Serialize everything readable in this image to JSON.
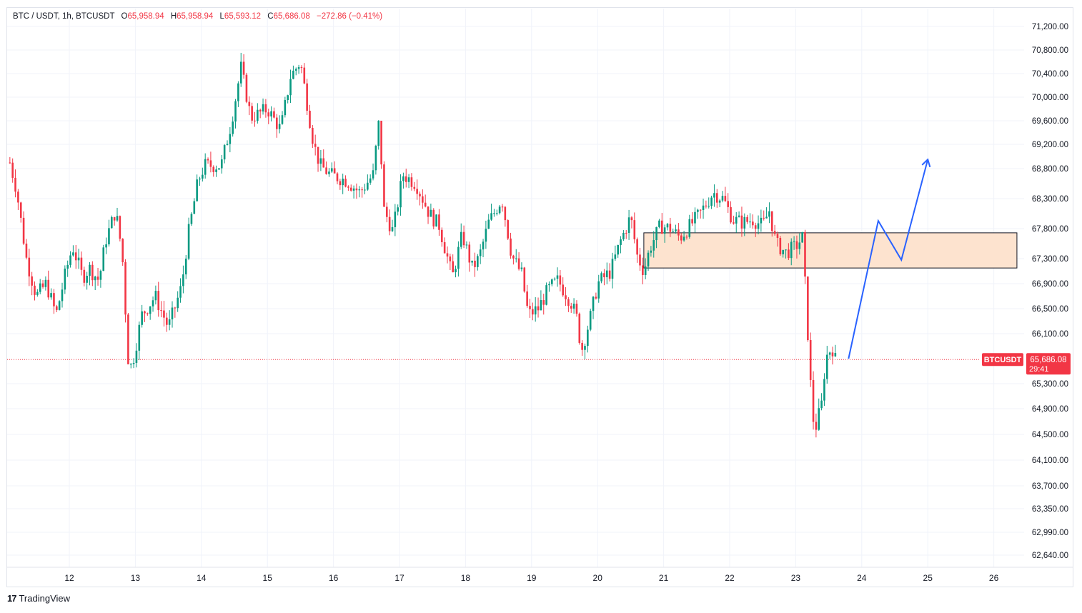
{
  "header": {
    "symbol": "BTC / USDT, 1h, BTCUSDT",
    "o_label": "O",
    "o": "65,958.94",
    "h_label": "H",
    "h": "65,958.94",
    "l_label": "L",
    "l": "65,593.12",
    "c_label": "C",
    "c": "65,686.08",
    "change": "−272.86 (−0.41%)"
  },
  "price_tag": {
    "symbol": "BTCUSDT",
    "price": "65,686.08",
    "countdown": "29:41",
    "color": "#f23645"
  },
  "footer": {
    "brand": "TradingView",
    "logo": "17"
  },
  "colors": {
    "up": "#089981",
    "down": "#f23645",
    "projection": "#2962ff",
    "zone_fill": "#fde3cf",
    "grid": "#f0f3fa"
  },
  "chart_data": {
    "type": "candlestick",
    "symbol": "BTCUSDT",
    "interval": "1h",
    "y_ticks": [
      71200,
      70800,
      70400,
      70000,
      69600,
      69200,
      68800,
      68300,
      67800,
      67300,
      66900,
      66500,
      66100,
      65300,
      64900,
      64500,
      64100,
      63700,
      63350,
      62990,
      62640
    ],
    "y_tick_labels": [
      "71,200.00",
      "70,800.00",
      "70,400.00",
      "70,000.00",
      "69,600.00",
      "69,200.00",
      "68,800.00",
      "68,300.00",
      "67,800.00",
      "67,300.00",
      "66,900.00",
      "66,500.00",
      "66,100.00",
      "65,300.00",
      "64,900.00",
      "64,500.00",
      "64,100.00",
      "63,700.00",
      "63,350.00",
      "62,990.00",
      "62,640.00"
    ],
    "x_ticks": [
      "12",
      "13",
      "14",
      "15",
      "16",
      "17",
      "18",
      "19",
      "20",
      "21",
      "22",
      "23",
      "24",
      "25",
      "26"
    ],
    "x_range": [
      11.1,
      26.3
    ],
    "current_price": 65686.08,
    "ohlc_hourly_from_day": 11.1,
    "close_path": [
      [
        11.1,
        68900
      ],
      [
        11.2,
        68450
      ],
      [
        11.35,
        67300
      ],
      [
        11.5,
        66700
      ],
      [
        11.65,
        66900
      ],
      [
        11.8,
        66400
      ],
      [
        11.95,
        67100
      ],
      [
        12.05,
        67500
      ],
      [
        12.2,
        67000
      ],
      [
        12.3,
        67150
      ],
      [
        12.45,
        66950
      ],
      [
        12.55,
        67600
      ],
      [
        12.7,
        68100
      ],
      [
        12.8,
        67400
      ],
      [
        12.9,
        65550
      ],
      [
        12.95,
        65600
      ],
      [
        13.1,
        66400
      ],
      [
        13.3,
        66700
      ],
      [
        13.5,
        66200
      ],
      [
        13.7,
        66850
      ],
      [
        13.8,
        67700
      ],
      [
        13.95,
        68600
      ],
      [
        14.05,
        68850
      ],
      [
        14.3,
        68850
      ],
      [
        14.45,
        69550
      ],
      [
        14.6,
        70500
      ],
      [
        14.75,
        69650
      ],
      [
        15.0,
        69800
      ],
      [
        15.2,
        69450
      ],
      [
        15.35,
        70350
      ],
      [
        15.5,
        70600
      ],
      [
        15.7,
        69200
      ],
      [
        15.8,
        68850
      ],
      [
        15.95,
        68700
      ],
      [
        16.2,
        68600
      ],
      [
        16.4,
        68400
      ],
      [
        16.6,
        68700
      ],
      [
        16.7,
        69700
      ],
      [
        16.75,
        68150
      ],
      [
        16.9,
        67750
      ],
      [
        17.05,
        68700
      ],
      [
        17.25,
        68550
      ],
      [
        17.45,
        68050
      ],
      [
        17.6,
        67850
      ],
      [
        17.8,
        67000
      ],
      [
        17.95,
        67700
      ],
      [
        18.1,
        67150
      ],
      [
        18.2,
        67300
      ],
      [
        18.35,
        67900
      ],
      [
        18.55,
        68300
      ],
      [
        18.7,
        67350
      ],
      [
        18.85,
        67050
      ],
      [
        18.95,
        66400
      ],
      [
        19.1,
        66500
      ],
      [
        19.25,
        66800
      ],
      [
        19.4,
        66950
      ],
      [
        19.6,
        66600
      ],
      [
        19.7,
        66300
      ],
      [
        19.75,
        65800
      ],
      [
        19.9,
        66400
      ],
      [
        20.0,
        66900
      ],
      [
        20.2,
        67100
      ],
      [
        20.35,
        67600
      ],
      [
        20.5,
        68000
      ],
      [
        20.6,
        67350
      ],
      [
        20.7,
        67100
      ],
      [
        20.8,
        67500
      ],
      [
        20.95,
        67850
      ],
      [
        21.1,
        67800
      ],
      [
        21.25,
        67650
      ],
      [
        21.4,
        67850
      ],
      [
        21.55,
        68050
      ],
      [
        21.75,
        68400
      ],
      [
        21.9,
        68300
      ],
      [
        22.05,
        67950
      ],
      [
        22.2,
        67900
      ],
      [
        22.35,
        67950
      ],
      [
        22.5,
        67850
      ],
      [
        22.6,
        68100
      ],
      [
        22.7,
        67550
      ],
      [
        22.85,
        67400
      ],
      [
        23.0,
        67500
      ],
      [
        23.1,
        67650
      ],
      [
        23.15,
        66750
      ],
      [
        23.25,
        64800
      ],
      [
        23.3,
        64600
      ],
      [
        23.4,
        65000
      ],
      [
        23.45,
        65700
      ],
      [
        23.55,
        65900
      ],
      [
        23.6,
        65686
      ]
    ],
    "zone": {
      "from_day": 20.7,
      "to_day": 26.35,
      "low": 67150,
      "high": 67730
    },
    "projection": [
      [
        23.8,
        65700
      ],
      [
        24.25,
        67930
      ],
      [
        24.6,
        67280
      ],
      [
        25.0,
        68950
      ]
    ]
  }
}
